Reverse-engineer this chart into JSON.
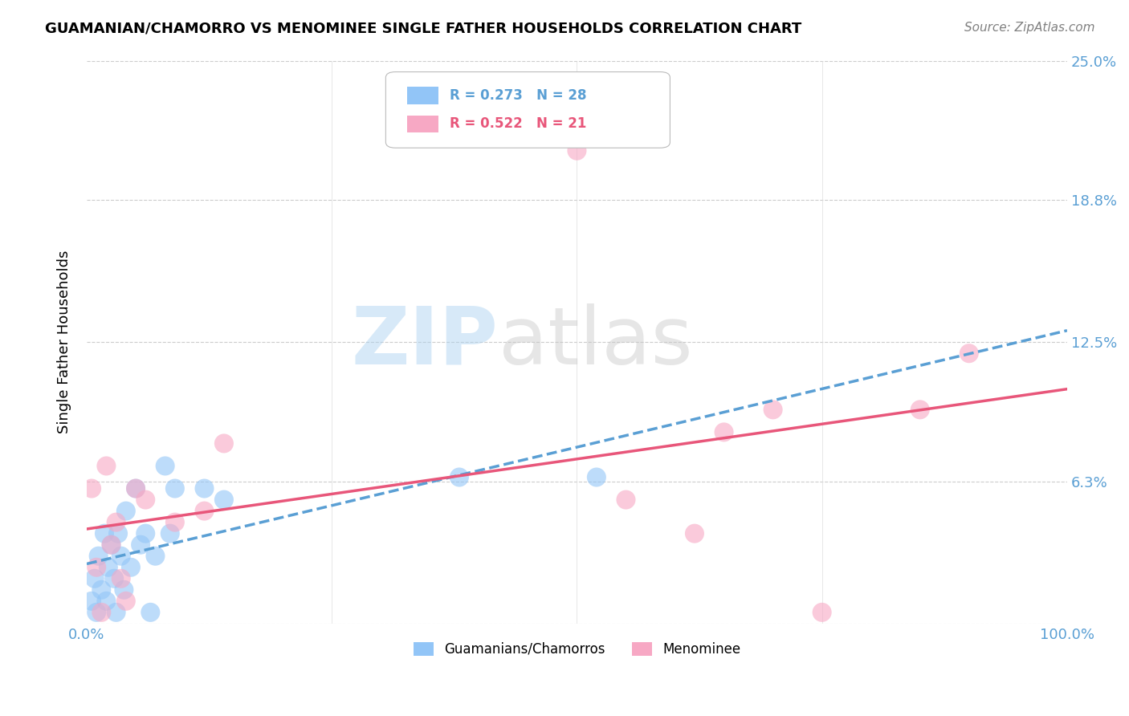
{
  "title": "GUAMANIAN/CHAMORRO VS MENOMINEE SINGLE FATHER HOUSEHOLDS CORRELATION CHART",
  "source": "Source: ZipAtlas.com",
  "ylabel": "Single Father Households",
  "xlim": [
    0.0,
    1.0
  ],
  "ylim": [
    0.0,
    0.25
  ],
  "ytick_vals": [
    0.0,
    0.063,
    0.125,
    0.188,
    0.25
  ],
  "ytick_labels": [
    "",
    "6.3%",
    "12.5%",
    "18.8%",
    "25.0%"
  ],
  "legend_blue_r": "R = 0.273",
  "legend_blue_n": "N = 28",
  "legend_pink_r": "R = 0.522",
  "legend_pink_n": "N = 21",
  "blue_color": "#92c5f7",
  "pink_color": "#f7a8c4",
  "blue_line_color": "#5a9fd4",
  "pink_line_color": "#e8567a",
  "label_color": "#5a9fd4",
  "blue_scatter_x": [
    0.005,
    0.008,
    0.01,
    0.012,
    0.015,
    0.018,
    0.02,
    0.022,
    0.025,
    0.028,
    0.03,
    0.032,
    0.035,
    0.038,
    0.04,
    0.045,
    0.05,
    0.055,
    0.06,
    0.065,
    0.07,
    0.08,
    0.085,
    0.09,
    0.12,
    0.14,
    0.38,
    0.52
  ],
  "blue_scatter_y": [
    0.01,
    0.02,
    0.005,
    0.03,
    0.015,
    0.04,
    0.01,
    0.025,
    0.035,
    0.02,
    0.005,
    0.04,
    0.03,
    0.015,
    0.05,
    0.025,
    0.06,
    0.035,
    0.04,
    0.005,
    0.03,
    0.07,
    0.04,
    0.06,
    0.06,
    0.055,
    0.065,
    0.065
  ],
  "pink_scatter_x": [
    0.005,
    0.01,
    0.015,
    0.02,
    0.025,
    0.03,
    0.035,
    0.04,
    0.05,
    0.06,
    0.09,
    0.12,
    0.14,
    0.5,
    0.55,
    0.62,
    0.65,
    0.7,
    0.75,
    0.85,
    0.9
  ],
  "pink_scatter_y": [
    0.06,
    0.025,
    0.005,
    0.07,
    0.035,
    0.045,
    0.02,
    0.01,
    0.06,
    0.055,
    0.045,
    0.05,
    0.08,
    0.21,
    0.055,
    0.04,
    0.085,
    0.095,
    0.005,
    0.095,
    0.12
  ]
}
